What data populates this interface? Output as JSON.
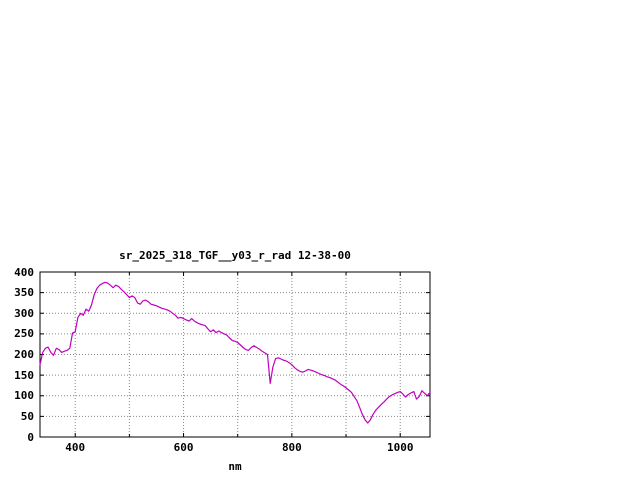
{
  "chart_data": {
    "type": "line",
    "title": "sr_2025_318_TGF__y03_r_rad 12-38-00",
    "xlabel": "nm",
    "ylabel": "",
    "xlim": [
      335,
      1055
    ],
    "ylim": [
      0,
      400
    ],
    "x_tick_labels": [
      400,
      600,
      800,
      1000
    ],
    "x_grid_lines": [
      400,
      500,
      600,
      700,
      800,
      900,
      1000
    ],
    "y_ticks": [
      0,
      50,
      100,
      150,
      200,
      250,
      300,
      350,
      400
    ],
    "grid": true,
    "legend": "none",
    "line_color": "#c000c0",
    "grid_color": "#888888",
    "axis_color": "#000000",
    "series": [
      {
        "name": "sr_2025_318_TGF__y03_r_rad",
        "x": [
          335,
          340,
          345,
          350,
          355,
          360,
          365,
          370,
          375,
          380,
          385,
          390,
          395,
          400,
          405,
          410,
          415,
          420,
          425,
          430,
          435,
          440,
          445,
          450,
          455,
          460,
          465,
          470,
          475,
          480,
          485,
          490,
          495,
          500,
          505,
          510,
          515,
          520,
          525,
          530,
          535,
          540,
          545,
          550,
          555,
          560,
          565,
          570,
          575,
          580,
          585,
          590,
          595,
          600,
          605,
          610,
          615,
          620,
          625,
          630,
          635,
          640,
          645,
          650,
          655,
          660,
          665,
          670,
          675,
          680,
          685,
          690,
          695,
          700,
          705,
          710,
          715,
          720,
          725,
          730,
          735,
          740,
          745,
          750,
          755,
          760,
          765,
          770,
          775,
          780,
          785,
          790,
          795,
          800,
          805,
          810,
          815,
          820,
          825,
          830,
          835,
          840,
          845,
          850,
          855,
          860,
          865,
          870,
          875,
          880,
          885,
          890,
          895,
          900,
          905,
          910,
          915,
          920,
          925,
          930,
          935,
          940,
          945,
          950,
          955,
          960,
          965,
          970,
          975,
          980,
          985,
          990,
          995,
          1000,
          1005,
          1010,
          1015,
          1020,
          1025,
          1030,
          1035,
          1040,
          1045,
          1050,
          1055
        ],
        "y": [
          175,
          205,
          215,
          218,
          205,
          198,
          215,
          212,
          205,
          208,
          210,
          215,
          252,
          255,
          290,
          300,
          295,
          310,
          305,
          320,
          345,
          360,
          368,
          372,
          375,
          373,
          368,
          362,
          368,
          365,
          358,
          352,
          345,
          338,
          342,
          338,
          325,
          322,
          330,
          332,
          328,
          322,
          320,
          318,
          315,
          312,
          310,
          308,
          305,
          300,
          295,
          288,
          290,
          287,
          284,
          281,
          287,
          281,
          277,
          274,
          272,
          270,
          262,
          255,
          260,
          253,
          257,
          253,
          250,
          247,
          240,
          234,
          232,
          229,
          223,
          217,
          212,
          210,
          217,
          221,
          217,
          213,
          208,
          204,
          200,
          130,
          170,
          190,
          192,
          189,
          186,
          184,
          180,
          175,
          168,
          163,
          159,
          157,
          160,
          164,
          162,
          160,
          157,
          154,
          151,
          149,
          146,
          144,
          141,
          138,
          133,
          128,
          124,
          119,
          114,
          108,
          98,
          88,
          72,
          55,
          42,
          34,
          42,
          55,
          65,
          72,
          79,
          85,
          92,
          98,
          102,
          105,
          108,
          110,
          104,
          97,
          103,
          107,
          110,
          92,
          98,
          112,
          106,
          100,
          108
        ]
      }
    ]
  }
}
